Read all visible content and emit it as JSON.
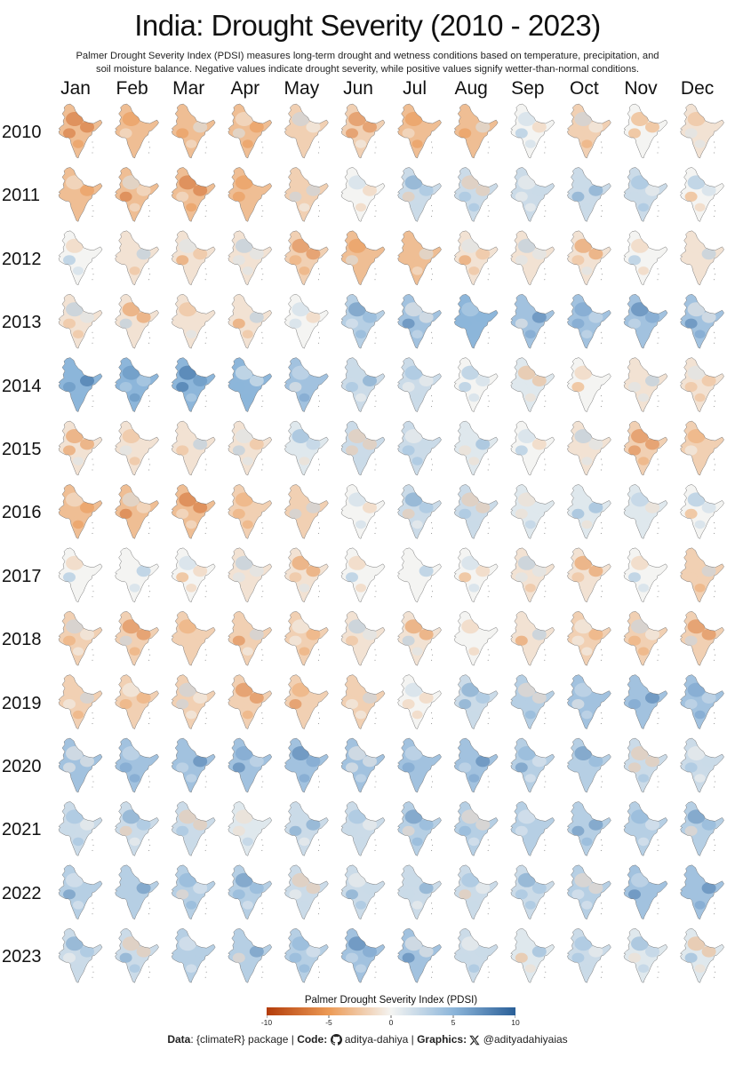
{
  "title": "India: Drought Severity (2010 - 2023)",
  "subtitle_line1": "Palmer Drought Severity Index (PDSI) measures long-term drought and wetness conditions based on temperature, precipitation, and",
  "subtitle_line2": "soil moisture balance. Negative values indicate drought severity, while positive values signify wetter-than-normal conditions.",
  "months": [
    "Jan",
    "Feb",
    "Mar",
    "Apr",
    "May",
    "Jun",
    "Jul",
    "Aug",
    "Sep",
    "Oct",
    "Nov",
    "Dec"
  ],
  "years": [
    "2010",
    "2011",
    "2012",
    "2013",
    "2014",
    "2015",
    "2016",
    "2017",
    "2018",
    "2019",
    "2020",
    "2021",
    "2022",
    "2023"
  ],
  "legend": {
    "title": "Palmer Drought Severity Index (PDSI)",
    "ticks": [
      "-10",
      "-5",
      "0",
      "5",
      "10"
    ],
    "colors": [
      "#b33c0a",
      "#e07a33",
      "#f5c08a",
      "#f4f4f2",
      "#a8c8e3",
      "#5a8fc2",
      "#2a5f98"
    ]
  },
  "credits": {
    "data_label": "Data",
    "data_value": ": {climateR} package | ",
    "code_label": "Code:",
    "code_handle": "aditya-dahiya",
    "sep": " | ",
    "graphics_label": "Graphics:",
    "graphics_handle": "@adityadahiyaias",
    "github_icon": "github-icon",
    "x_icon": "x-icon"
  },
  "map_pdsi_monthly": [
    [
      -3,
      -3,
      -3,
      -3,
      -2,
      -2,
      -3,
      -3,
      0,
      -2,
      0,
      -1
    ],
    [
      -3,
      -3,
      -3,
      -3,
      -2,
      0,
      2,
      2,
      2,
      2,
      2,
      0
    ],
    [
      0,
      -1,
      -1,
      -1,
      -2,
      -3,
      -3,
      -1,
      -1,
      -1,
      0,
      -1
    ],
    [
      -1,
      -1,
      -1,
      -1,
      0,
      3,
      4,
      5,
      4,
      4,
      4,
      4
    ],
    [
      5,
      5,
      5,
      5,
      4,
      2,
      2,
      0,
      1,
      0,
      -1,
      -1
    ],
    [
      -1,
      -1,
      -1,
      -1,
      1,
      2,
      2,
      1,
      0,
      -1,
      -2,
      -2
    ],
    [
      -3,
      -3,
      -3,
      -2,
      -2,
      0,
      2,
      2,
      1,
      1,
      1,
      0
    ],
    [
      0,
      0,
      0,
      -1,
      -1,
      0,
      0,
      0,
      -1,
      -1,
      0,
      -2
    ],
    [
      -2,
      -2,
      -2,
      -2,
      -2,
      -1,
      -1,
      0,
      -1,
      -2,
      -2,
      -2
    ],
    [
      -2,
      -2,
      -2,
      -2,
      -2,
      -2,
      0,
      2,
      3,
      4,
      4,
      4
    ],
    [
      4,
      4,
      4,
      4,
      4,
      4,
      4,
      4,
      3,
      3,
      2,
      2
    ],
    [
      2,
      2,
      2,
      1,
      2,
      2,
      3,
      3,
      3,
      3,
      3,
      3
    ],
    [
      3,
      3,
      3,
      3,
      2,
      2,
      2,
      2,
      2,
      3,
      4,
      4
    ],
    [
      2,
      2,
      3,
      3,
      3,
      4,
      4,
      2,
      1,
      2,
      1,
      1
    ]
  ]
}
